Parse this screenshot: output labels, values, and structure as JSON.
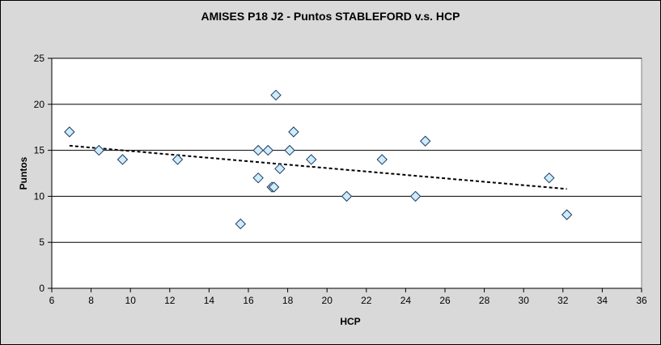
{
  "chart_data": {
    "type": "scatter",
    "title": "AMISES P18 J2 - Puntos STABLEFORD v.s. HCP",
    "xlabel": "HCP",
    "ylabel": "Puntos",
    "xlim": [
      6,
      36
    ],
    "ylim": [
      0,
      25
    ],
    "x_ticks": [
      6,
      8,
      10,
      12,
      14,
      16,
      18,
      20,
      22,
      24,
      26,
      28,
      30,
      32,
      34,
      36
    ],
    "y_ticks": [
      0,
      5,
      10,
      15,
      20,
      25
    ],
    "grid": "horizontal",
    "legend": "none",
    "points": [
      {
        "x": 6.9,
        "y": 17
      },
      {
        "x": 8.4,
        "y": 15
      },
      {
        "x": 9.6,
        "y": 14
      },
      {
        "x": 12.4,
        "y": 14
      },
      {
        "x": 15.6,
        "y": 7
      },
      {
        "x": 16.5,
        "y": 15
      },
      {
        "x": 16.5,
        "y": 12
      },
      {
        "x": 17.0,
        "y": 15
      },
      {
        "x": 17.2,
        "y": 11
      },
      {
        "x": 17.3,
        "y": 11
      },
      {
        "x": 17.4,
        "y": 21
      },
      {
        "x": 17.6,
        "y": 13
      },
      {
        "x": 18.1,
        "y": 15
      },
      {
        "x": 18.3,
        "y": 17
      },
      {
        "x": 19.2,
        "y": 14
      },
      {
        "x": 21.0,
        "y": 10
      },
      {
        "x": 22.8,
        "y": 14
      },
      {
        "x": 24.5,
        "y": 10
      },
      {
        "x": 25.0,
        "y": 16
      },
      {
        "x": 31.3,
        "y": 12
      },
      {
        "x": 32.2,
        "y": 8
      }
    ],
    "trendline": {
      "type": "linear",
      "x": [
        6.9,
        32.2
      ],
      "y": [
        15.5,
        10.8
      ]
    },
    "colors": {
      "frame_bg": "#d9d9d9",
      "plot_bg": "#ffffff",
      "marker_fill": "#ccecff",
      "marker_stroke": "#1f3a5a",
      "trend": "#000000"
    }
  }
}
